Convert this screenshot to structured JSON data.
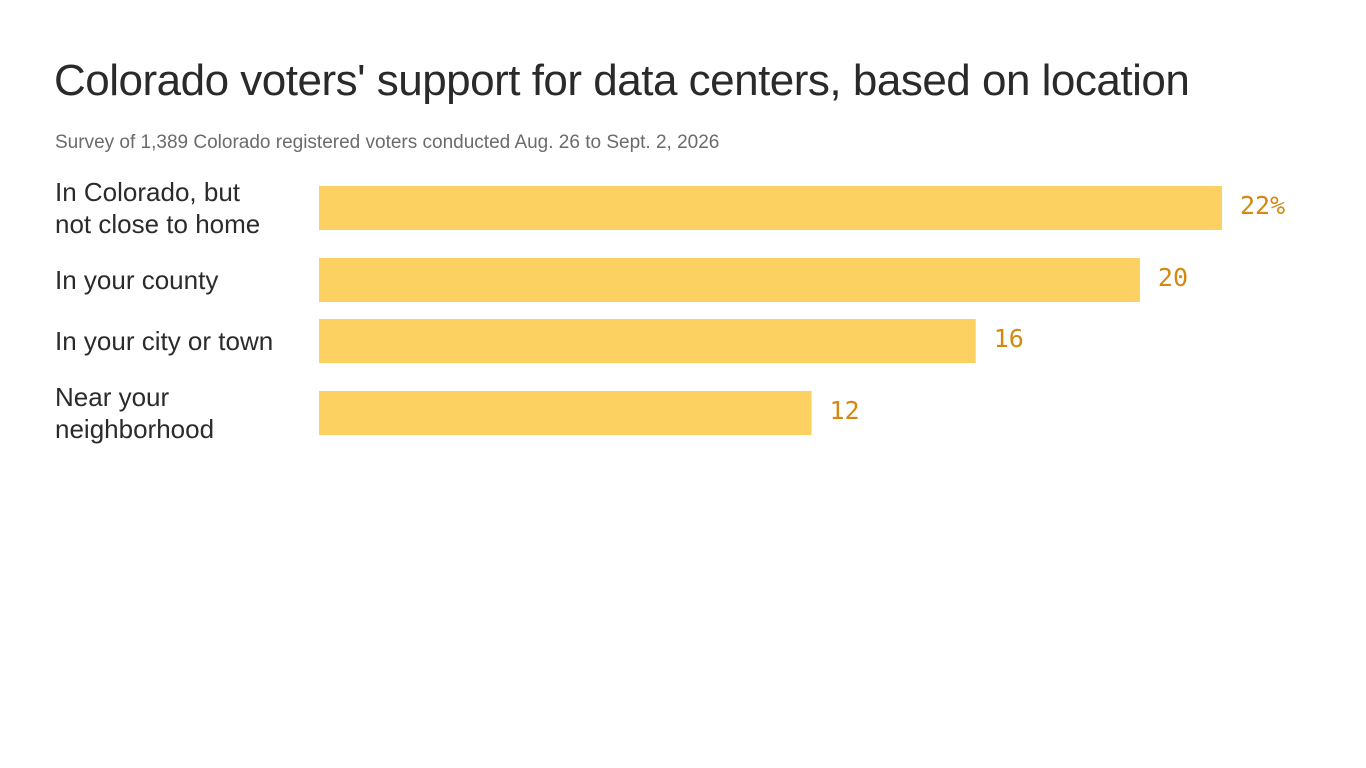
{
  "chart_data": {
    "type": "bar",
    "orientation": "horizontal",
    "title": "Colorado voters' support for data centers, based on location",
    "subtitle": "Survey of 1,389 Colorado registered voters conducted Aug. 26 to Sept. 2, 2026",
    "categories": [
      [
        "In Colorado, but",
        "not close to home"
      ],
      [
        "In your county"
      ],
      [
        "In your city or town"
      ],
      [
        "Near your",
        "neighborhood"
      ]
    ],
    "values": [
      22,
      20,
      16,
      12
    ],
    "value_labels": [
      "22%",
      "20",
      "16",
      "12"
    ],
    "unit": "%",
    "xlim": [
      0,
      22
    ],
    "grid": false,
    "legend": "none",
    "bar_color": "#fdd062",
    "value_label_color": "#d4880f"
  }
}
